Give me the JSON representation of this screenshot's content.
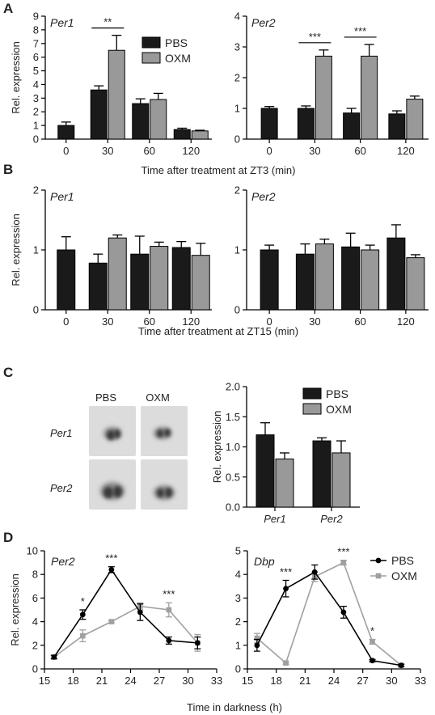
{
  "panel_labels": {
    "A": "A",
    "B": "B",
    "C": "C",
    "D": "D"
  },
  "colors": {
    "pbs_bar": "#1a1a1a",
    "oxm_bar": "#999999",
    "pbs_line": "#000000",
    "oxm_line": "#a0a0a0"
  },
  "panel_c_images": {
    "col_labels": [
      "PBS",
      "OXM"
    ],
    "row_labels": [
      "Per1",
      "Per2"
    ]
  },
  "chart_data": [
    {
      "id": "A_per1",
      "type": "bar",
      "title": "Per1",
      "categories": [
        "0",
        "30",
        "60",
        "120"
      ],
      "series": [
        {
          "name": "PBS",
          "values": [
            1.0,
            3.6,
            2.6,
            0.7
          ],
          "errors": [
            0.25,
            0.3,
            0.35,
            0.1
          ]
        },
        {
          "name": "OXM",
          "values": [
            null,
            6.5,
            2.9,
            0.6
          ],
          "errors": [
            null,
            1.1,
            0.45,
            0.05
          ]
        }
      ],
      "ylabel": "Rel. expression",
      "ylim": [
        0,
        9
      ],
      "yticks": [
        0,
        1,
        2,
        3,
        4,
        5,
        6,
        7,
        8,
        9
      ],
      "significance": [
        {
          "group": 1,
          "text": "**"
        }
      ],
      "legend": [
        "PBS",
        "OXM"
      ]
    },
    {
      "id": "A_per2",
      "type": "bar",
      "title": "Per2",
      "categories": [
        "0",
        "30",
        "60",
        "120"
      ],
      "series": [
        {
          "name": "PBS",
          "values": [
            1.0,
            1.0,
            0.85,
            0.82
          ],
          "errors": [
            0.06,
            0.08,
            0.15,
            0.1
          ]
        },
        {
          "name": "OXM",
          "values": [
            null,
            2.7,
            2.7,
            1.3
          ],
          "errors": [
            null,
            0.2,
            0.38,
            0.1
          ]
        }
      ],
      "ylim": [
        0,
        4
      ],
      "yticks": [
        0,
        1,
        2,
        3,
        4
      ],
      "significance": [
        {
          "group": 1,
          "text": "***"
        },
        {
          "group": 2,
          "text": "***"
        }
      ]
    },
    {
      "id": "B_per1",
      "type": "bar",
      "title": "Per1",
      "categories": [
        "0",
        "30",
        "60",
        "120"
      ],
      "series": [
        {
          "name": "PBS",
          "values": [
            1.0,
            0.78,
            0.93,
            1.04
          ],
          "errors": [
            0.22,
            0.15,
            0.3,
            0.1
          ]
        },
        {
          "name": "OXM",
          "values": [
            null,
            1.2,
            1.06,
            0.91
          ],
          "errors": [
            null,
            0.05,
            0.07,
            0.2
          ]
        }
      ],
      "ylabel": "Rel. expression",
      "ylim": [
        0,
        2
      ],
      "yticks": [
        0,
        1,
        2
      ]
    },
    {
      "id": "B_per2",
      "type": "bar",
      "title": "Per2",
      "categories": [
        "0",
        "30",
        "60",
        "120"
      ],
      "series": [
        {
          "name": "PBS",
          "values": [
            1.0,
            0.93,
            1.05,
            1.2
          ],
          "errors": [
            0.08,
            0.17,
            0.23,
            0.22
          ]
        },
        {
          "name": "OXM",
          "values": [
            null,
            1.1,
            1.0,
            0.87
          ],
          "errors": [
            null,
            0.08,
            0.08,
            0.05
          ]
        }
      ],
      "ylim": [
        0,
        2
      ],
      "yticks": [
        0,
        1,
        2
      ]
    },
    {
      "id": "C",
      "type": "bar",
      "categories": [
        "Per1",
        "Per2"
      ],
      "series": [
        {
          "name": "PBS",
          "values": [
            1.2,
            1.1
          ],
          "errors": [
            0.2,
            0.05
          ]
        },
        {
          "name": "OXM",
          "values": [
            0.8,
            0.9
          ],
          "errors": [
            0.1,
            0.2
          ]
        }
      ],
      "ylabel": "Rel. expression",
      "ylim": [
        0,
        2
      ],
      "yticks": [
        "0.0",
        "0.5",
        "1.0",
        "1.5",
        "2.0"
      ],
      "legend": [
        "PBS",
        "OXM"
      ]
    },
    {
      "id": "D_per2",
      "type": "line",
      "title": "Per2",
      "series": [
        {
          "name": "PBS",
          "x": [
            16,
            19,
            22,
            25,
            28,
            31
          ],
          "values": [
            1.0,
            4.6,
            8.4,
            4.8,
            2.4,
            2.2
          ],
          "errors": [
            0.15,
            0.4,
            0.25,
            0.7,
            0.3,
            0.5
          ]
        },
        {
          "name": "OXM",
          "x": [
            16,
            19,
            22,
            25,
            28,
            31
          ],
          "values": [
            1.0,
            2.8,
            4.0,
            5.3,
            5.0,
            2.2
          ],
          "errors": [
            0.15,
            0.5,
            0.1,
            0.3,
            0.6,
            0.7
          ]
        }
      ],
      "ylabel": "Rel. expression",
      "ylim": [
        0,
        10
      ],
      "yticks": [
        0,
        2,
        4,
        6,
        8,
        10
      ],
      "xlim": [
        15,
        33
      ],
      "xticks": [
        15,
        18,
        21,
        24,
        27,
        30,
        33
      ],
      "significance": [
        {
          "x": 19,
          "text": "*"
        },
        {
          "x": 22,
          "text": "***"
        },
        {
          "x": 28,
          "text": "***"
        }
      ]
    },
    {
      "id": "D_dbp",
      "type": "line",
      "title": "Dbp",
      "series": [
        {
          "name": "PBS",
          "x": [
            16,
            19,
            22,
            25,
            28,
            31
          ],
          "values": [
            1.0,
            3.4,
            4.1,
            2.4,
            0.35,
            0.15
          ],
          "errors": [
            0.25,
            0.35,
            0.3,
            0.25,
            0.05,
            0.05
          ]
        },
        {
          "name": "OXM",
          "x": [
            16,
            19,
            22,
            25,
            28,
            31
          ],
          "values": [
            1.3,
            0.25,
            3.9,
            4.5,
            1.15,
            0.15
          ],
          "errors": [
            0.2,
            0.05,
            0.2,
            0.1,
            0.1,
            0.05
          ]
        }
      ],
      "ylim": [
        0,
        5
      ],
      "yticks": [
        0,
        1,
        2,
        3,
        4,
        5
      ],
      "xlim": [
        15,
        33
      ],
      "xticks": [
        15,
        18,
        21,
        24,
        27,
        30,
        33
      ],
      "significance": [
        {
          "x": 19,
          "text": "***"
        },
        {
          "x": 25,
          "text": "***"
        },
        {
          "x": 28,
          "text": "*"
        }
      ],
      "legend": [
        "PBS",
        "OXM"
      ]
    }
  ],
  "axis_titles": {
    "A_x": "Time after treatment at ZT3 (min)",
    "B_x": "Time after treatment at ZT15 (min)",
    "D_x": "Time in darkness (h)"
  }
}
